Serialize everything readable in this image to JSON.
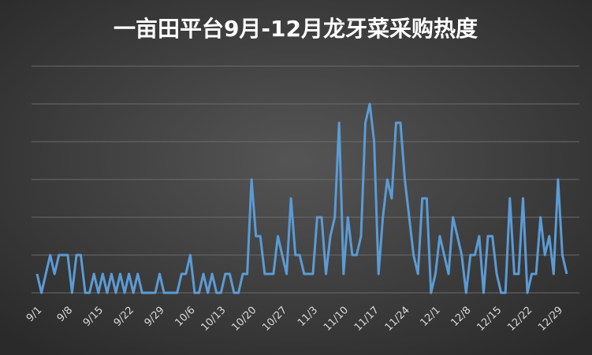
{
  "chart_data": {
    "type": "line",
    "title": "一亩田平台9月-12月龙牙菜采购热度",
    "categories": [
      "9/1",
      null,
      null,
      null,
      null,
      null,
      null,
      "9/8",
      null,
      null,
      null,
      null,
      null,
      null,
      "9/15",
      null,
      null,
      null,
      null,
      null,
      null,
      "9/22",
      null,
      null,
      null,
      null,
      null,
      null,
      "9/29",
      null,
      null,
      null,
      null,
      null,
      null,
      "10/6",
      null,
      null,
      null,
      null,
      null,
      null,
      "10/13",
      null,
      null,
      null,
      null,
      null,
      null,
      "10/20",
      null,
      null,
      null,
      null,
      null,
      null,
      "10/27",
      null,
      null,
      null,
      null,
      null,
      null,
      "11/3",
      null,
      null,
      null,
      null,
      null,
      null,
      "11/10",
      null,
      null,
      null,
      null,
      null,
      null,
      "11/17",
      null,
      null,
      null,
      null,
      null,
      null,
      "11/24",
      null,
      null,
      null,
      null,
      null,
      null,
      "12/1",
      null,
      null,
      null,
      null,
      null,
      null,
      "12/8",
      null,
      null,
      null,
      null,
      null,
      null,
      "12/15",
      null,
      null,
      null,
      null,
      null,
      null,
      "12/22",
      null,
      null,
      null,
      null,
      null,
      null,
      "12/29",
      null,
      null
    ],
    "series": [
      {
        "color": "#5b9bd5",
        "values": [
          1,
          0,
          1,
          2,
          1,
          2,
          2,
          2,
          0,
          2,
          2,
          0,
          0,
          1,
          0,
          1,
          0,
          1,
          0,
          1,
          0,
          1,
          0,
          1,
          0,
          0,
          0,
          0,
          1,
          0,
          0,
          0,
          0,
          1,
          1,
          2,
          0,
          0,
          1,
          0,
          1,
          0,
          0,
          1,
          1,
          0,
          0,
          1,
          1,
          6,
          3,
          3,
          1,
          1,
          1,
          3,
          2,
          1,
          5,
          2,
          2,
          1,
          1,
          1,
          4,
          4,
          1,
          3,
          4,
          9,
          1,
          4,
          2,
          2,
          3,
          9,
          10,
          8,
          1,
          4,
          6,
          5,
          9,
          9,
          6,
          4,
          2,
          1,
          5,
          5,
          0,
          1,
          3,
          2,
          1,
          4,
          3,
          2,
          0,
          2,
          2,
          3,
          0,
          3,
          3,
          1,
          0,
          0,
          5,
          1,
          1,
          5,
          0,
          1,
          1,
          4,
          2,
          3,
          1,
          6,
          2,
          1
        ]
      }
    ],
    "ylim": [
      0,
      12
    ],
    "yticks": [
      0,
      2,
      4,
      6,
      8,
      10,
      12
    ],
    "grid": true
  }
}
